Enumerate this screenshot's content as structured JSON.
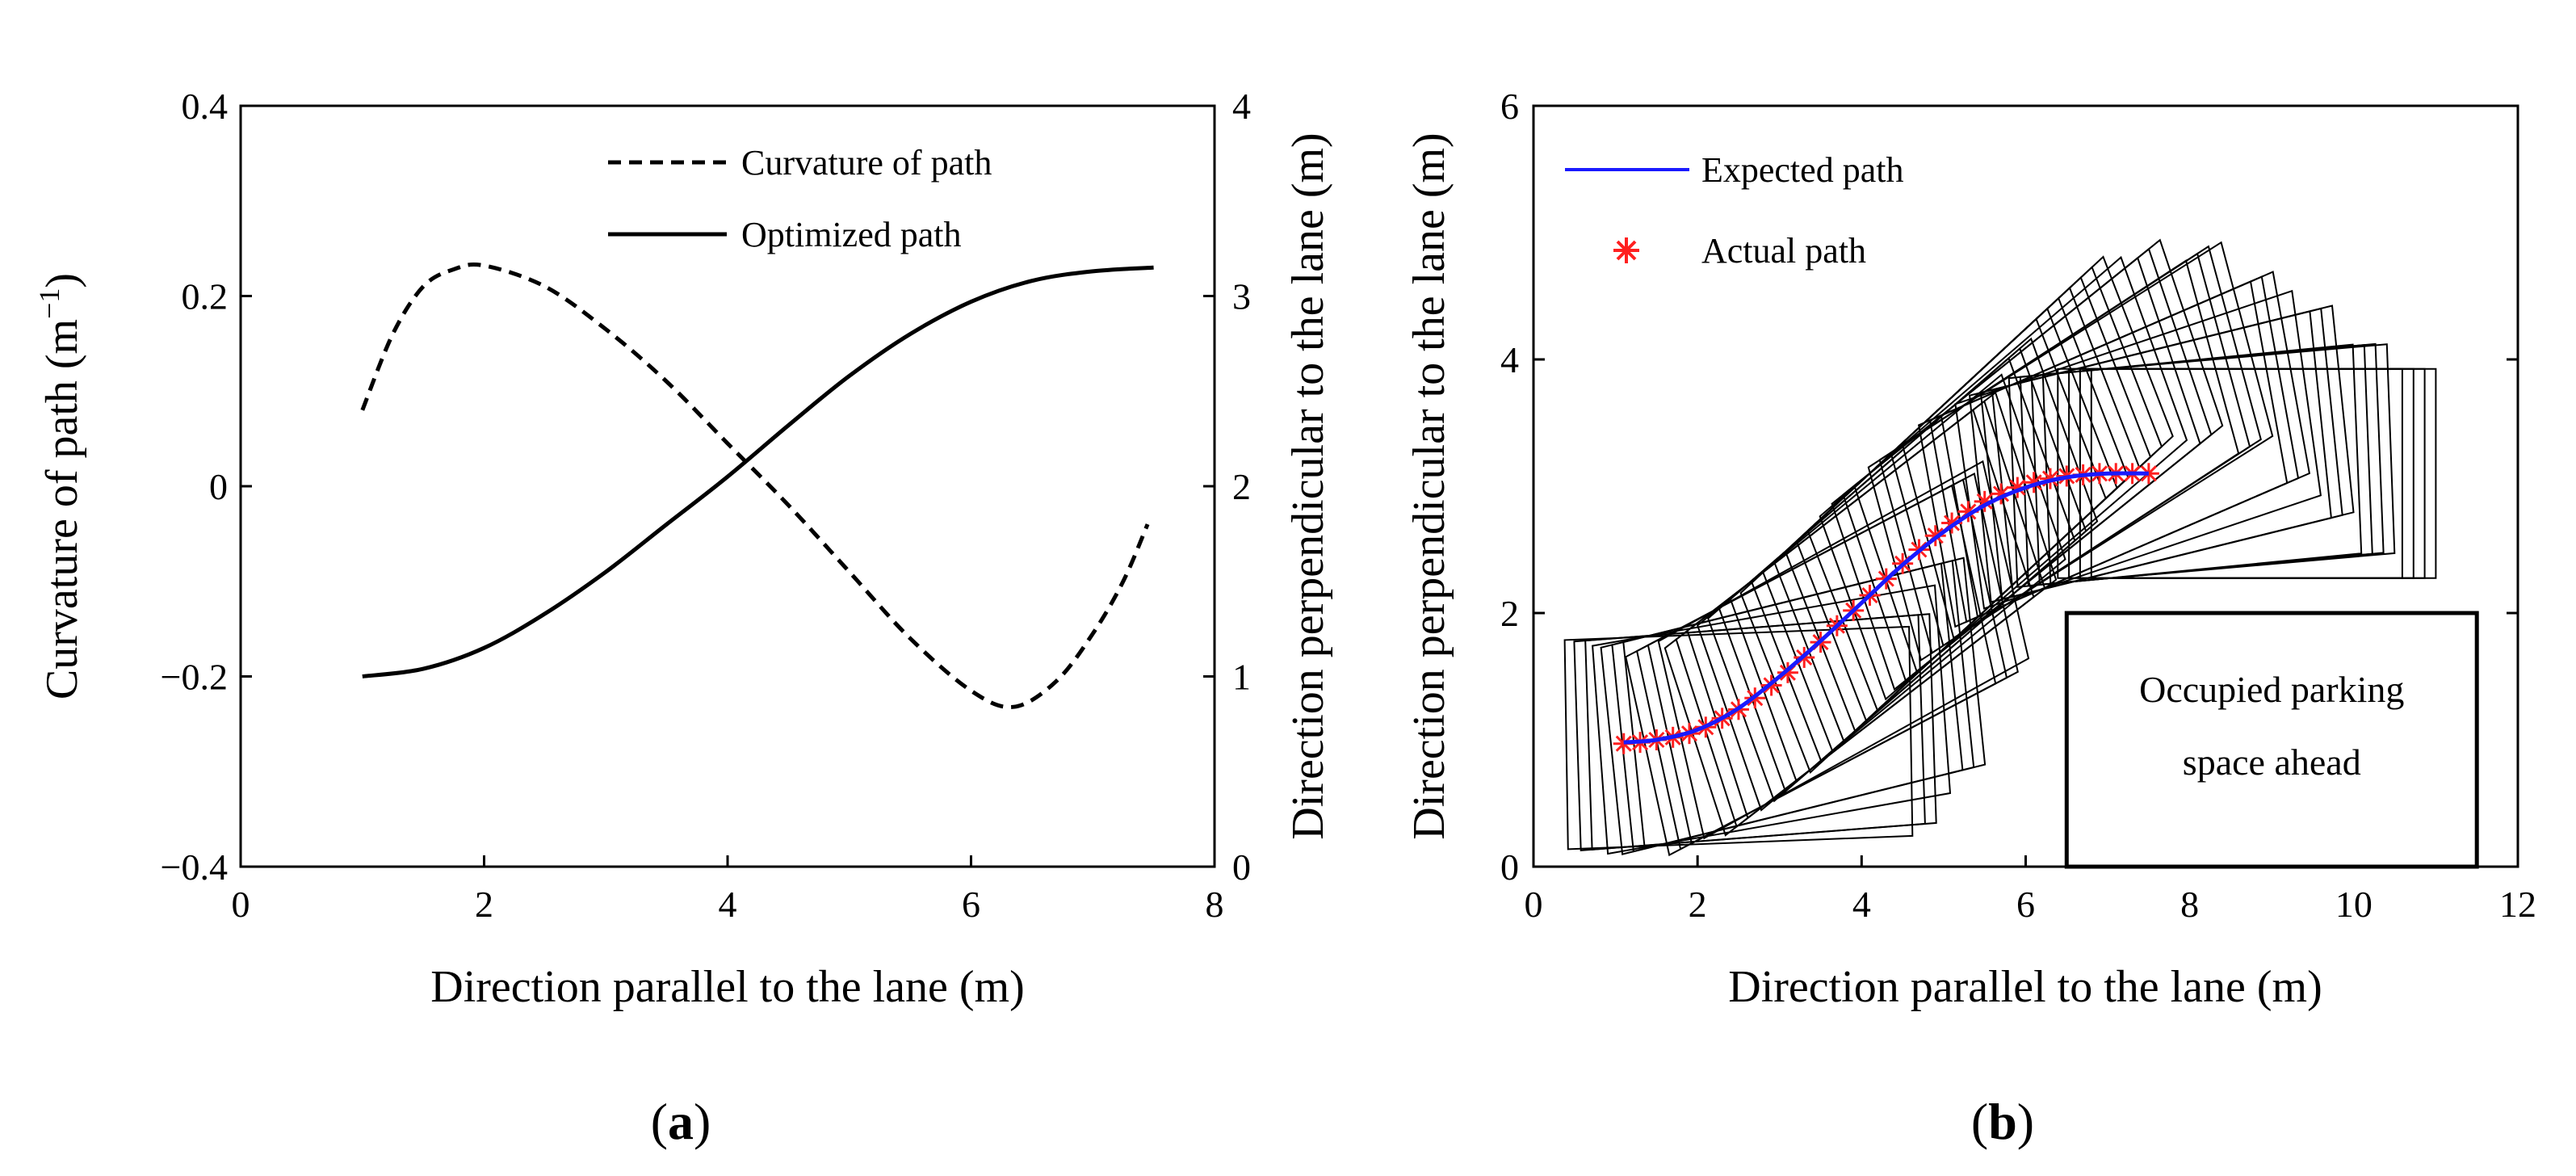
{
  "chart_data": [
    {
      "id": "a",
      "type": "line",
      "caption": "a",
      "xlabel": "Direction parallel to the lane (m)",
      "ylabel_left": "Curvature of path (m",
      "ylabel_left_sup": "−1",
      "ylabel_left_close": ")",
      "ylabel_right": "Direction perpendicular to the lane (m)",
      "xlim": [
        0,
        8
      ],
      "ylim_left": [
        -0.4,
        0.4
      ],
      "ylim_right": [
        0,
        4
      ],
      "xticks": [
        "0",
        "2",
        "4",
        "6",
        "8"
      ],
      "yticks_left": [
        "0.4",
        "0.2",
        "0",
        "−0.2",
        "−0.4"
      ],
      "yticks_right": [
        "4",
        "3",
        "2",
        "1",
        "0"
      ],
      "legend": [
        "Curvature of path",
        "Optimized path"
      ],
      "series": [
        {
          "name": "Curvature of path",
          "axis": "left",
          "style": "dashed",
          "x": [
            1.0,
            1.25,
            1.5,
            1.75,
            2.0,
            2.5,
            3.0,
            3.5,
            4.0,
            4.5,
            5.0,
            5.5,
            6.0,
            6.35,
            6.7,
            7.0,
            7.25,
            7.45
          ],
          "y": [
            0.08,
            0.16,
            0.21,
            0.228,
            0.232,
            0.21,
            0.165,
            0.11,
            0.045,
            -0.02,
            -0.09,
            -0.16,
            -0.215,
            -0.232,
            -0.205,
            -0.155,
            -0.1,
            -0.04
          ]
        },
        {
          "name": "Optimized path",
          "axis": "right",
          "style": "solid",
          "x": [
            1.0,
            1.5,
            2.0,
            2.5,
            3.0,
            3.5,
            4.0,
            4.5,
            5.0,
            5.5,
            6.0,
            6.5,
            7.0,
            7.5
          ],
          "y": [
            1.0,
            1.04,
            1.15,
            1.33,
            1.55,
            1.8,
            2.05,
            2.32,
            2.58,
            2.8,
            2.97,
            3.08,
            3.13,
            3.15
          ]
        }
      ]
    },
    {
      "id": "b",
      "type": "line",
      "caption": "b",
      "xlabel": "Direction parallel to the lane (m)",
      "ylabel": "Direction perpendicular to the lane (m)",
      "xlim": [
        0,
        12
      ],
      "ylim": [
        0,
        6
      ],
      "xticks": [
        "0",
        "2",
        "4",
        "6",
        "8",
        "10",
        "12"
      ],
      "yticks": [
        "6",
        "4",
        "2",
        "0"
      ],
      "legend": [
        "Expected path",
        "Actual path"
      ],
      "vehicle_length_m": 4.2,
      "vehicle_width_m": 1.65,
      "series": [
        {
          "name": "Expected path",
          "color": "#1a1aff",
          "x": [
            1.1,
            1.5,
            2.0,
            2.5,
            3.0,
            3.5,
            4.0,
            4.5,
            5.0,
            5.5,
            6.0,
            6.5,
            7.0,
            7.5
          ],
          "y": [
            0.98,
            1.0,
            1.08,
            1.25,
            1.5,
            1.78,
            2.08,
            2.38,
            2.64,
            2.85,
            2.99,
            3.07,
            3.1,
            3.1
          ]
        },
        {
          "name": "Actual path",
          "color": "#ff2020",
          "x": [
            1.1,
            1.3,
            1.5,
            1.7,
            1.9,
            2.1,
            2.3,
            2.5,
            2.7,
            2.9,
            3.1,
            3.3,
            3.5,
            3.7,
            3.9,
            4.1,
            4.3,
            4.5,
            4.7,
            4.9,
            5.1,
            5.3,
            5.5,
            5.7,
            5.9,
            6.1,
            6.3,
            6.5,
            6.7,
            6.9,
            7.1,
            7.3,
            7.5
          ],
          "y": [
            0.97,
            0.98,
            1.0,
            1.02,
            1.05,
            1.1,
            1.17,
            1.24,
            1.33,
            1.43,
            1.53,
            1.65,
            1.77,
            1.9,
            2.02,
            2.14,
            2.27,
            2.39,
            2.5,
            2.61,
            2.71,
            2.8,
            2.88,
            2.94,
            2.99,
            3.03,
            3.06,
            3.08,
            3.09,
            3.1,
            3.1,
            3.1,
            3.1
          ]
        }
      ],
      "obstacle": {
        "label_line1": "Occupied parking",
        "label_line2": "space ahead",
        "x_range": [
          6.5,
          11.5
        ],
        "y_range": [
          0,
          2.0
        ]
      }
    }
  ]
}
